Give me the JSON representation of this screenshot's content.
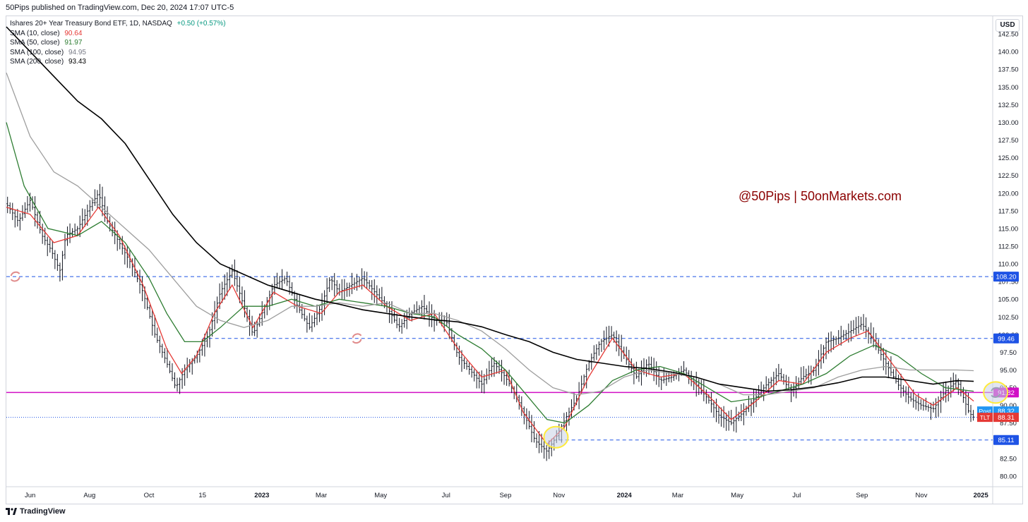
{
  "header": {
    "publisher": "50Pips published on TradingView.com, Dec 20, 2024 17:07 UTC-5"
  },
  "legend": {
    "title": "Ishares 20+ Year Treasury Bond ETF, 1D, NASDAQ",
    "change": "+0.50 (+0.57%)",
    "items": [
      {
        "label": "SMA (10, close)",
        "value": "90.64",
        "color": "#e53935"
      },
      {
        "label": "SMA (50, close)",
        "value": "91.97",
        "color": "#2e7d32"
      },
      {
        "label": "SMA (100, close)",
        "value": "94.95",
        "color": "#9e9e9e"
      },
      {
        "label": "SMA (200, close)",
        "value": "93.43",
        "color": "#000000"
      }
    ]
  },
  "currency": "USD",
  "watermark": "@50Pips | 50onMarkets.com",
  "footer": {
    "brand": "TradingView"
  },
  "chart_data": {
    "type": "line",
    "symbol": "TLT",
    "ylim": [
      78.5,
      145
    ],
    "y_ticks": [
      80.0,
      82.5,
      85.0,
      87.5,
      90.0,
      92.5,
      95.0,
      97.5,
      100.0,
      102.5,
      105.0,
      107.5,
      110.0,
      112.5,
      115.0,
      117.5,
      120.0,
      122.5,
      125.0,
      127.5,
      130.0,
      132.5,
      135.0,
      137.5,
      140.0,
      142.5
    ],
    "x_ticks": [
      "Jun",
      "Aug",
      "Oct",
      "15",
      "2023",
      "Mar",
      "May",
      "Jul",
      "Sep",
      "Nov",
      "2024",
      "Mar",
      "May",
      "Jul",
      "Sep",
      "Nov",
      "2025"
    ],
    "x_tick_index": [
      0.04,
      0.14,
      0.24,
      0.33,
      0.43,
      0.53,
      0.63,
      0.74,
      0.84,
      0.93,
      1.04,
      1.13,
      1.23,
      1.33,
      1.44,
      1.54,
      1.64
    ],
    "x_range": [
      0,
      1.66
    ],
    "price_path": [
      [
        0.0,
        118.5
      ],
      [
        0.02,
        116
      ],
      [
        0.04,
        119
      ],
      [
        0.06,
        114
      ],
      [
        0.075,
        112
      ],
      [
        0.09,
        109
      ],
      [
        0.1,
        114
      ],
      [
        0.12,
        115
      ],
      [
        0.14,
        118
      ],
      [
        0.155,
        120
      ],
      [
        0.17,
        116
      ],
      [
        0.19,
        113
      ],
      [
        0.21,
        110
      ],
      [
        0.23,
        106
      ],
      [
        0.25,
        100
      ],
      [
        0.27,
        96
      ],
      [
        0.285,
        92.5
      ],
      [
        0.3,
        95
      ],
      [
        0.32,
        97
      ],
      [
        0.34,
        100
      ],
      [
        0.36,
        106
      ],
      [
        0.38,
        109
      ],
      [
        0.4,
        104
      ],
      [
        0.415,
        100
      ],
      [
        0.43,
        103
      ],
      [
        0.45,
        107
      ],
      [
        0.47,
        108
      ],
      [
        0.49,
        104
      ],
      [
        0.51,
        101
      ],
      [
        0.53,
        104
      ],
      [
        0.545,
        108
      ],
      [
        0.56,
        106
      ],
      [
        0.58,
        107
      ],
      [
        0.6,
        108
      ],
      [
        0.62,
        106
      ],
      [
        0.64,
        104
      ],
      [
        0.66,
        101
      ],
      [
        0.68,
        103
      ],
      [
        0.7,
        104
      ],
      [
        0.72,
        102
      ],
      [
        0.74,
        102
      ],
      [
        0.76,
        97
      ],
      [
        0.78,
        95
      ],
      [
        0.8,
        93
      ],
      [
        0.82,
        96
      ],
      [
        0.84,
        94
      ],
      [
        0.86,
        91
      ],
      [
        0.875,
        88
      ],
      [
        0.89,
        85
      ],
      [
        0.91,
        83.5
      ],
      [
        0.925,
        85.5
      ],
      [
        0.94,
        88
      ],
      [
        0.96,
        91
      ],
      [
        0.98,
        96
      ],
      [
        1.0,
        99
      ],
      [
        1.02,
        100
      ],
      [
        1.04,
        97
      ],
      [
        1.06,
        94
      ],
      [
        1.08,
        96
      ],
      [
        1.1,
        93.5
      ],
      [
        1.12,
        94
      ],
      [
        1.14,
        95
      ],
      [
        1.16,
        93
      ],
      [
        1.18,
        91
      ],
      [
        1.2,
        88.5
      ],
      [
        1.22,
        87.5
      ],
      [
        1.24,
        89
      ],
      [
        1.26,
        91
      ],
      [
        1.28,
        93
      ],
      [
        1.3,
        94.5
      ],
      [
        1.32,
        92
      ],
      [
        1.34,
        94
      ],
      [
        1.36,
        95
      ],
      [
        1.38,
        99
      ],
      [
        1.4,
        99.5
      ],
      [
        1.42,
        100.5
      ],
      [
        1.44,
        101.5
      ],
      [
        1.46,
        99
      ],
      [
        1.48,
        96
      ],
      [
        1.5,
        93
      ],
      [
        1.52,
        91
      ],
      [
        1.54,
        90
      ],
      [
        1.56,
        89.5
      ],
      [
        1.58,
        92
      ],
      [
        1.6,
        93.5
      ],
      [
        1.62,
        89
      ],
      [
        1.628,
        88.3
      ]
    ],
    "series": [
      {
        "name": "SMA (10, close)",
        "color": "#e53935",
        "points": [
          [
            0.0,
            118
          ],
          [
            0.04,
            117
          ],
          [
            0.08,
            113
          ],
          [
            0.12,
            114
          ],
          [
            0.155,
            118
          ],
          [
            0.19,
            114
          ],
          [
            0.23,
            107
          ],
          [
            0.27,
            98
          ],
          [
            0.295,
            94.5
          ],
          [
            0.32,
            97
          ],
          [
            0.35,
            103
          ],
          [
            0.38,
            107
          ],
          [
            0.415,
            101
          ],
          [
            0.45,
            106
          ],
          [
            0.49,
            104
          ],
          [
            0.53,
            103
          ],
          [
            0.56,
            106
          ],
          [
            0.6,
            107
          ],
          [
            0.64,
            104
          ],
          [
            0.68,
            102
          ],
          [
            0.72,
            103
          ],
          [
            0.76,
            98
          ],
          [
            0.8,
            94
          ],
          [
            0.84,
            95
          ],
          [
            0.87,
            89
          ],
          [
            0.91,
            84.5
          ],
          [
            0.94,
            87
          ],
          [
            0.98,
            94
          ],
          [
            1.02,
            99.5
          ],
          [
            1.06,
            95
          ],
          [
            1.1,
            94
          ],
          [
            1.14,
            94.5
          ],
          [
            1.18,
            91.5
          ],
          [
            1.22,
            88
          ],
          [
            1.26,
            90.5
          ],
          [
            1.3,
            93.5
          ],
          [
            1.34,
            93
          ],
          [
            1.38,
            97.5
          ],
          [
            1.42,
            99.5
          ],
          [
            1.45,
            100.5
          ],
          [
            1.49,
            96
          ],
          [
            1.53,
            91.5
          ],
          [
            1.56,
            90
          ],
          [
            1.6,
            92.5
          ],
          [
            1.628,
            90.6
          ]
        ]
      },
      {
        "name": "SMA (50, close)",
        "color": "#2e7d32",
        "points": [
          [
            0.0,
            130
          ],
          [
            0.03,
            121
          ],
          [
            0.07,
            115
          ],
          [
            0.12,
            114
          ],
          [
            0.16,
            116
          ],
          [
            0.2,
            113
          ],
          [
            0.24,
            108
          ],
          [
            0.27,
            103
          ],
          [
            0.3,
            99
          ],
          [
            0.33,
            99
          ],
          [
            0.36,
            101
          ],
          [
            0.4,
            104
          ],
          [
            0.44,
            104
          ],
          [
            0.48,
            105
          ],
          [
            0.52,
            104
          ],
          [
            0.56,
            105
          ],
          [
            0.6,
            104.5
          ],
          [
            0.64,
            104
          ],
          [
            0.68,
            103
          ],
          [
            0.72,
            102.5
          ],
          [
            0.76,
            100
          ],
          [
            0.8,
            98
          ],
          [
            0.84,
            95
          ],
          [
            0.88,
            91
          ],
          [
            0.91,
            88
          ],
          [
            0.94,
            87.5
          ],
          [
            0.98,
            90
          ],
          [
            1.02,
            93.5
          ],
          [
            1.06,
            95
          ],
          [
            1.1,
            95.5
          ],
          [
            1.14,
            94.5
          ],
          [
            1.18,
            92.5
          ],
          [
            1.22,
            90.5
          ],
          [
            1.26,
            91
          ],
          [
            1.3,
            92
          ],
          [
            1.34,
            93
          ],
          [
            1.38,
            94.5
          ],
          [
            1.42,
            97
          ],
          [
            1.46,
            98.5
          ],
          [
            1.5,
            97
          ],
          [
            1.54,
            94.5
          ],
          [
            1.58,
            92.5
          ],
          [
            1.628,
            92
          ]
        ]
      },
      {
        "name": "SMA (100, close)",
        "color": "#9e9e9e",
        "points": [
          [
            0.0,
            137
          ],
          [
            0.04,
            128
          ],
          [
            0.08,
            123
          ],
          [
            0.12,
            121
          ],
          [
            0.16,
            118
          ],
          [
            0.2,
            115
          ],
          [
            0.24,
            112
          ],
          [
            0.28,
            108
          ],
          [
            0.32,
            104
          ],
          [
            0.36,
            102
          ],
          [
            0.4,
            101
          ],
          [
            0.44,
            102
          ],
          [
            0.48,
            104
          ],
          [
            0.52,
            104
          ],
          [
            0.56,
            104.5
          ],
          [
            0.6,
            104
          ],
          [
            0.64,
            104.5
          ],
          [
            0.68,
            103
          ],
          [
            0.72,
            103
          ],
          [
            0.76,
            102
          ],
          [
            0.8,
            100.5
          ],
          [
            0.84,
            98
          ],
          [
            0.88,
            95
          ],
          [
            0.92,
            92.5
          ],
          [
            0.96,
            91.5
          ],
          [
            1.0,
            92
          ],
          [
            1.04,
            94
          ],
          [
            1.08,
            95
          ],
          [
            1.12,
            94.5
          ],
          [
            1.16,
            94
          ],
          [
            1.2,
            93
          ],
          [
            1.24,
            91.5
          ],
          [
            1.28,
            91.5
          ],
          [
            1.32,
            92
          ],
          [
            1.36,
            92.5
          ],
          [
            1.4,
            94
          ],
          [
            1.44,
            95
          ],
          [
            1.48,
            95.5
          ],
          [
            1.52,
            95
          ],
          [
            1.56,
            95
          ],
          [
            1.6,
            95
          ],
          [
            1.628,
            94.9
          ]
        ]
      },
      {
        "name": "SMA (200, close)",
        "color": "#000000",
        "points": [
          [
            0.0,
            143.5
          ],
          [
            0.04,
            140
          ],
          [
            0.08,
            136.5
          ],
          [
            0.12,
            133
          ],
          [
            0.16,
            130.5
          ],
          [
            0.2,
            127
          ],
          [
            0.24,
            122
          ],
          [
            0.28,
            117
          ],
          [
            0.32,
            113
          ],
          [
            0.36,
            110
          ],
          [
            0.4,
            108.5
          ],
          [
            0.44,
            107
          ],
          [
            0.48,
            106
          ],
          [
            0.52,
            105
          ],
          [
            0.56,
            104.3
          ],
          [
            0.6,
            103.5
          ],
          [
            0.64,
            103
          ],
          [
            0.68,
            102.5
          ],
          [
            0.72,
            102.1
          ],
          [
            0.76,
            101.8
          ],
          [
            0.8,
            101.1
          ],
          [
            0.84,
            100
          ],
          [
            0.88,
            99
          ],
          [
            0.92,
            97.5
          ],
          [
            0.96,
            96.5
          ],
          [
            1.0,
            96
          ],
          [
            1.04,
            95.5
          ],
          [
            1.08,
            95.2
          ],
          [
            1.12,
            94.7
          ],
          [
            1.16,
            94
          ],
          [
            1.2,
            93
          ],
          [
            1.24,
            92.5
          ],
          [
            1.28,
            92
          ],
          [
            1.32,
            92.2
          ],
          [
            1.36,
            92.6
          ],
          [
            1.4,
            93.2
          ],
          [
            1.44,
            94
          ],
          [
            1.48,
            94
          ],
          [
            1.52,
            93.5
          ],
          [
            1.56,
            93
          ],
          [
            1.6,
            93.5
          ],
          [
            1.628,
            93.4
          ]
        ]
      }
    ],
    "horizontal_lines": [
      {
        "value": 108.2,
        "label": "108.20",
        "color": "#1e53e5",
        "style": "dashed",
        "x_start": 0.0
      },
      {
        "value": 99.46,
        "label": "99.46",
        "color": "#1e53e5",
        "style": "dashed",
        "x_start": 0.33
      },
      {
        "value": 91.82,
        "label": "91.82",
        "color": "#d10fc5",
        "style": "solid",
        "x_start": 0.0
      },
      {
        "value": 85.11,
        "label": "85.11",
        "color": "#1e53e5",
        "style": "dashed",
        "x_start": 0.93
      },
      {
        "value": 88.31,
        "label": "",
        "color": "#1e53e5",
        "style": "dotted",
        "x_start": 0.0
      }
    ],
    "price_tags": [
      {
        "label": "Post",
        "value": "88.32",
        "color": "#2196f3",
        "y": 89.2
      },
      {
        "label": "TLT",
        "value": "88.31",
        "color": "#e53935",
        "y": 88.31
      }
    ],
    "markers": [
      {
        "type": "highlight-circle",
        "x": 0.925,
        "y": 85.5,
        "color": "#ffeb3b"
      },
      {
        "type": "highlight-circle",
        "x": 1.665,
        "y": 91.82,
        "color": "#ffeb3b"
      },
      {
        "type": "replay-icon",
        "x": 0.015,
        "y": 108.2
      },
      {
        "type": "replay-icon",
        "x": 0.59,
        "y": 99.46
      }
    ]
  }
}
